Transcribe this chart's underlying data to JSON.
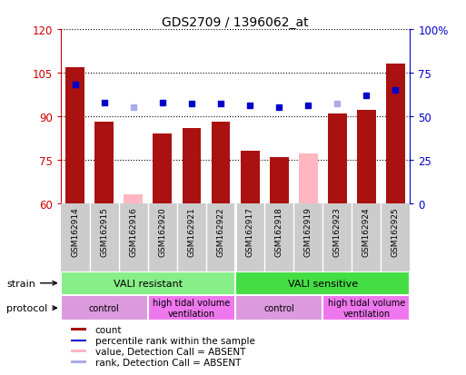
{
  "title": "GDS2709 / 1396062_at",
  "samples": [
    "GSM162914",
    "GSM162915",
    "GSM162916",
    "GSM162920",
    "GSM162921",
    "GSM162922",
    "GSM162917",
    "GSM162918",
    "GSM162919",
    "GSM162923",
    "GSM162924",
    "GSM162925"
  ],
  "bar_values": [
    107,
    88,
    63,
    84,
    86,
    88,
    78,
    76,
    77,
    91,
    92,
    108
  ],
  "bar_absent": [
    false,
    false,
    true,
    false,
    false,
    false,
    false,
    false,
    true,
    false,
    false,
    false
  ],
  "percentile_values": [
    68,
    58,
    55,
    58,
    57,
    57,
    56,
    55,
    56,
    57,
    62,
    65
  ],
  "percentile_absent": [
    false,
    false,
    true,
    false,
    false,
    false,
    false,
    false,
    false,
    true,
    false,
    false
  ],
  "ylim_left": [
    60,
    120
  ],
  "ylim_right": [
    0,
    100
  ],
  "yticks_left": [
    60,
    75,
    90,
    105,
    120
  ],
  "ytick_labels_left": [
    "60",
    "75",
    "90",
    "105",
    "120"
  ],
  "yticks_right": [
    0,
    25,
    50,
    75,
    100
  ],
  "ytick_labels_right": [
    "0",
    "25",
    "50",
    "75",
    "100%"
  ],
  "bar_color_present": "#AA1111",
  "bar_color_absent": "#FFB6C1",
  "dot_color_present": "#0000CC",
  "dot_color_absent": "#AAAAEE",
  "left_axis_color": "#CC0000",
  "right_axis_color": "#0000CC",
  "plot_bg_color": "#FFFFFF",
  "sample_row_bg": "#CCCCCC",
  "strain_resistant_color": "#77DD77",
  "strain_sensitive_color": "#44CC44",
  "protocol_control_color": "#DD88DD",
  "protocol_htv_color": "#EE66EE",
  "strain_groups": [
    {
      "label": "VALI resistant",
      "start": 0,
      "end": 6,
      "color": "#88EE88"
    },
    {
      "label": "VALI sensitive",
      "start": 6,
      "end": 12,
      "color": "#44DD44"
    }
  ],
  "protocol_groups": [
    {
      "label": "control",
      "start": 0,
      "end": 3,
      "color": "#DD99DD"
    },
    {
      "label": "high tidal volume\nventilation",
      "start": 3,
      "end": 6,
      "color": "#EE77EE"
    },
    {
      "label": "control",
      "start": 6,
      "end": 9,
      "color": "#DD99DD"
    },
    {
      "label": "high tidal volume\nventilation",
      "start": 9,
      "end": 12,
      "color": "#EE77EE"
    }
  ],
  "legend_items": [
    {
      "color": "#AA1111",
      "label": "count"
    },
    {
      "color": "#0000CC",
      "label": "percentile rank within the sample"
    },
    {
      "color": "#FFB6C1",
      "label": "value, Detection Call = ABSENT"
    },
    {
      "color": "#AAAAEE",
      "label": "rank, Detection Call = ABSENT"
    }
  ]
}
